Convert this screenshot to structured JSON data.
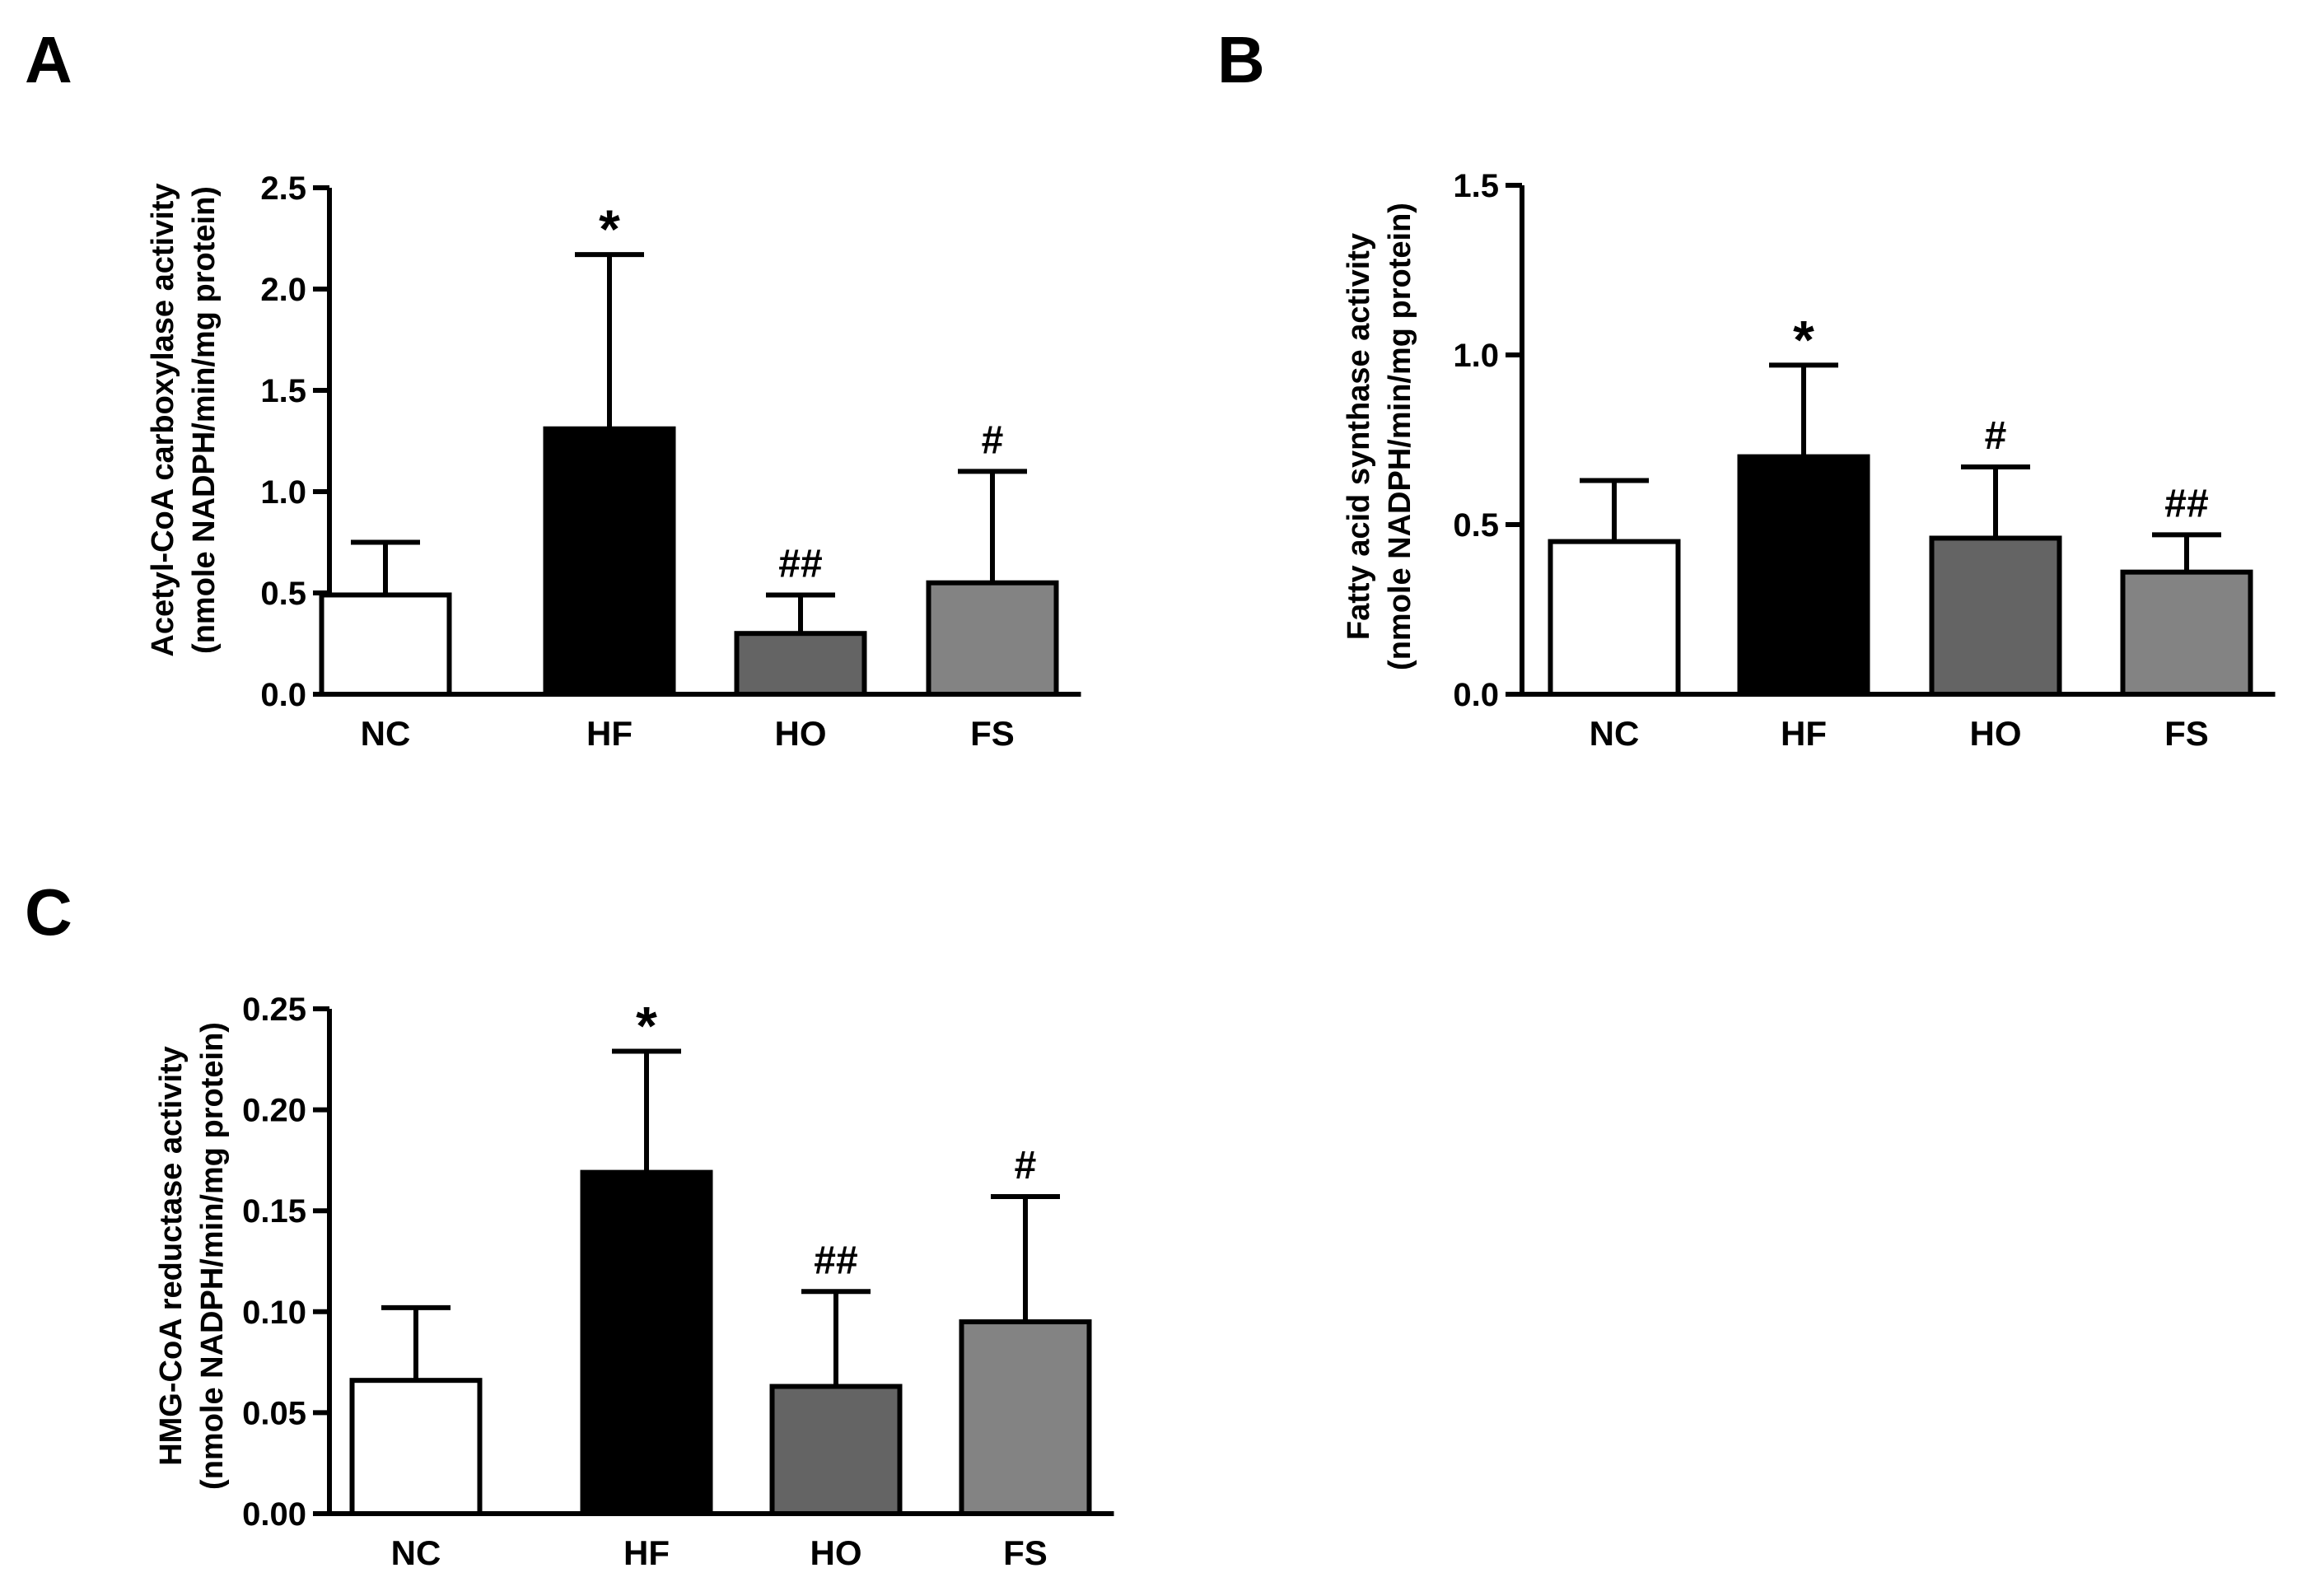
{
  "chart_data": [
    {
      "type": "bar",
      "panel_label": "A",
      "categories": [
        "NC",
        "HF",
        "HO",
        "FS"
      ],
      "values": [
        0.49,
        1.31,
        0.3,
        0.55
      ],
      "error_upper": [
        0.75,
        2.17,
        0.49,
        1.1
      ],
      "annotations": [
        "",
        "*",
        "##",
        "#"
      ],
      "bar_colors": [
        "#ffffff",
        "#000000",
        "#646464",
        "#838383"
      ],
      "ylabel_line1": "Acetyl-CoA carboxylase activity",
      "ylabel_line2": "(nmole NADPH/min/mg protein)",
      "yticks": [
        "0.0",
        "0.5",
        "1.0",
        "1.5",
        "2.0",
        "2.5"
      ],
      "ylim": [
        0,
        2.5
      ],
      "grid": false
    },
    {
      "type": "bar",
      "panel_label": "B",
      "categories": [
        "NC",
        "HF",
        "HO",
        "FS"
      ],
      "values": [
        0.45,
        0.7,
        0.46,
        0.36
      ],
      "error_upper": [
        0.63,
        0.97,
        0.67,
        0.47
      ],
      "annotations": [
        "",
        "*",
        "#",
        "##"
      ],
      "bar_colors": [
        "#ffffff",
        "#000000",
        "#646464",
        "#838383"
      ],
      "ylabel_line1": "Fatty acid synthase activity",
      "ylabel_line2": "(nmole NADPH/min/mg protein)",
      "yticks": [
        "0.0",
        "0.5",
        "1.0",
        "1.5"
      ],
      "ylim": [
        0,
        1.5
      ],
      "grid": false
    },
    {
      "type": "bar",
      "panel_label": "C",
      "categories": [
        "NC",
        "HF",
        "HO",
        "FS"
      ],
      "values": [
        0.066,
        0.169,
        0.063,
        0.095
      ],
      "error_upper": [
        0.102,
        0.229,
        0.11,
        0.157
      ],
      "annotations": [
        "",
        "*",
        "##",
        "#"
      ],
      "bar_colors": [
        "#ffffff",
        "#000000",
        "#646464",
        "#838383"
      ],
      "ylabel_line1": "HMG-CoA reductase activity",
      "ylabel_line2": "(nmole NADPH/min/mg protein)",
      "yticks": [
        "0.00",
        "0.05",
        "0.10",
        "0.15",
        "0.20",
        "0.25"
      ],
      "ylim": [
        0,
        0.25
      ],
      "grid": false
    }
  ]
}
